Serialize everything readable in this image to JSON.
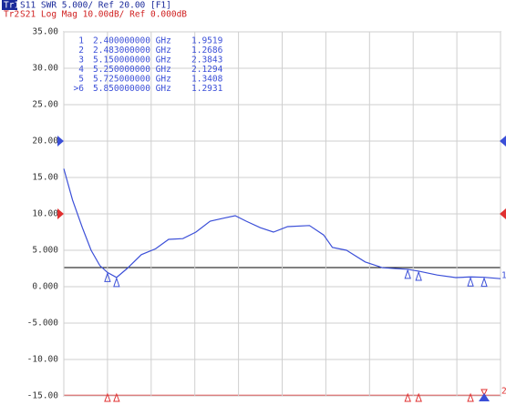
{
  "chart_data": {
    "type": "line",
    "trace1": {
      "tag": "Tr1",
      "info": "S11 SWR 5.000/ Ref 20.00 [F1]",
      "ref_position": 20,
      "end_label": "1"
    },
    "trace2": {
      "tag": "Tr2",
      "info": "S21 Log Mag 10.00dB/ Ref 0.000dB",
      "ref_position": 10,
      "end_label": "2"
    },
    "xlim": [
      2,
      6
    ],
    "xticks": [
      2,
      2.4,
      2.8,
      3.2,
      3.6,
      4,
      4.4,
      4.8,
      5.2,
      5.6,
      6
    ],
    "ylim": [
      -15,
      35
    ],
    "yticks": [
      {
        "value": 35,
        "label": "35.00"
      },
      {
        "value": 30,
        "label": "30.00"
      },
      {
        "value": 25,
        "label": "25.00"
      },
      {
        "value": 20,
        "label": "20.00"
      },
      {
        "value": 15,
        "label": "15.00"
      },
      {
        "value": 10,
        "label": "10.00"
      },
      {
        "value": 5,
        "label": "5.000"
      },
      {
        "value": 0,
        "label": "0.000"
      },
      {
        "value": -5,
        "label": "-5.000"
      },
      {
        "value": -10,
        "label": "-10.00"
      },
      {
        "value": -15,
        "label": "-15.00"
      }
    ],
    "grid": true,
    "series": [
      {
        "name": "Tr1",
        "color": "#3b4fd8",
        "x": [
          2.0,
          2.08,
          2.17,
          2.25,
          2.33,
          2.4,
          2.483,
          2.58,
          2.71,
          2.84,
          2.96,
          3.09,
          3.21,
          3.34,
          3.46,
          3.57,
          3.67,
          3.8,
          3.92,
          4.05,
          4.25,
          4.38,
          4.46,
          4.59,
          4.76,
          4.92,
          5.15,
          5.25,
          5.42,
          5.59,
          5.725,
          5.85,
          6.0
        ],
        "values": [
          16.2,
          11.9,
          8.1,
          5.0,
          2.9,
          1.95,
          1.27,
          2.5,
          4.4,
          5.2,
          6.5,
          6.6,
          7.5,
          9.0,
          9.4,
          9.75,
          9.0,
          8.1,
          7.5,
          8.25,
          8.4,
          7.1,
          5.4,
          5.0,
          3.4,
          2.6,
          2.38,
          2.13,
          1.6,
          1.25,
          1.34,
          1.29,
          1.1
        ]
      }
    ],
    "markers": [
      {
        "label": "1",
        "freq": 2.4,
        "freq_label": "2.400000000 GHz",
        "value": 1.9519
      },
      {
        "label": "2",
        "freq": 2.483,
        "freq_label": "2.483000000 GHz",
        "value": 1.2686
      },
      {
        "label": "3",
        "freq": 5.15,
        "freq_label": "5.150000000 GHz",
        "value": 2.3843
      },
      {
        "label": "4",
        "freq": 5.25,
        "freq_label": "5.250000000 GHz",
        "value": 2.1294
      },
      {
        "label": "5",
        "freq": 5.725,
        "freq_label": "5.725000000 GHz",
        "value": 1.3408
      },
      {
        "label": ">6",
        "freq": 5.85,
        "freq_label": "5.850000000 GHz",
        "value": 1.2931
      }
    ]
  }
}
